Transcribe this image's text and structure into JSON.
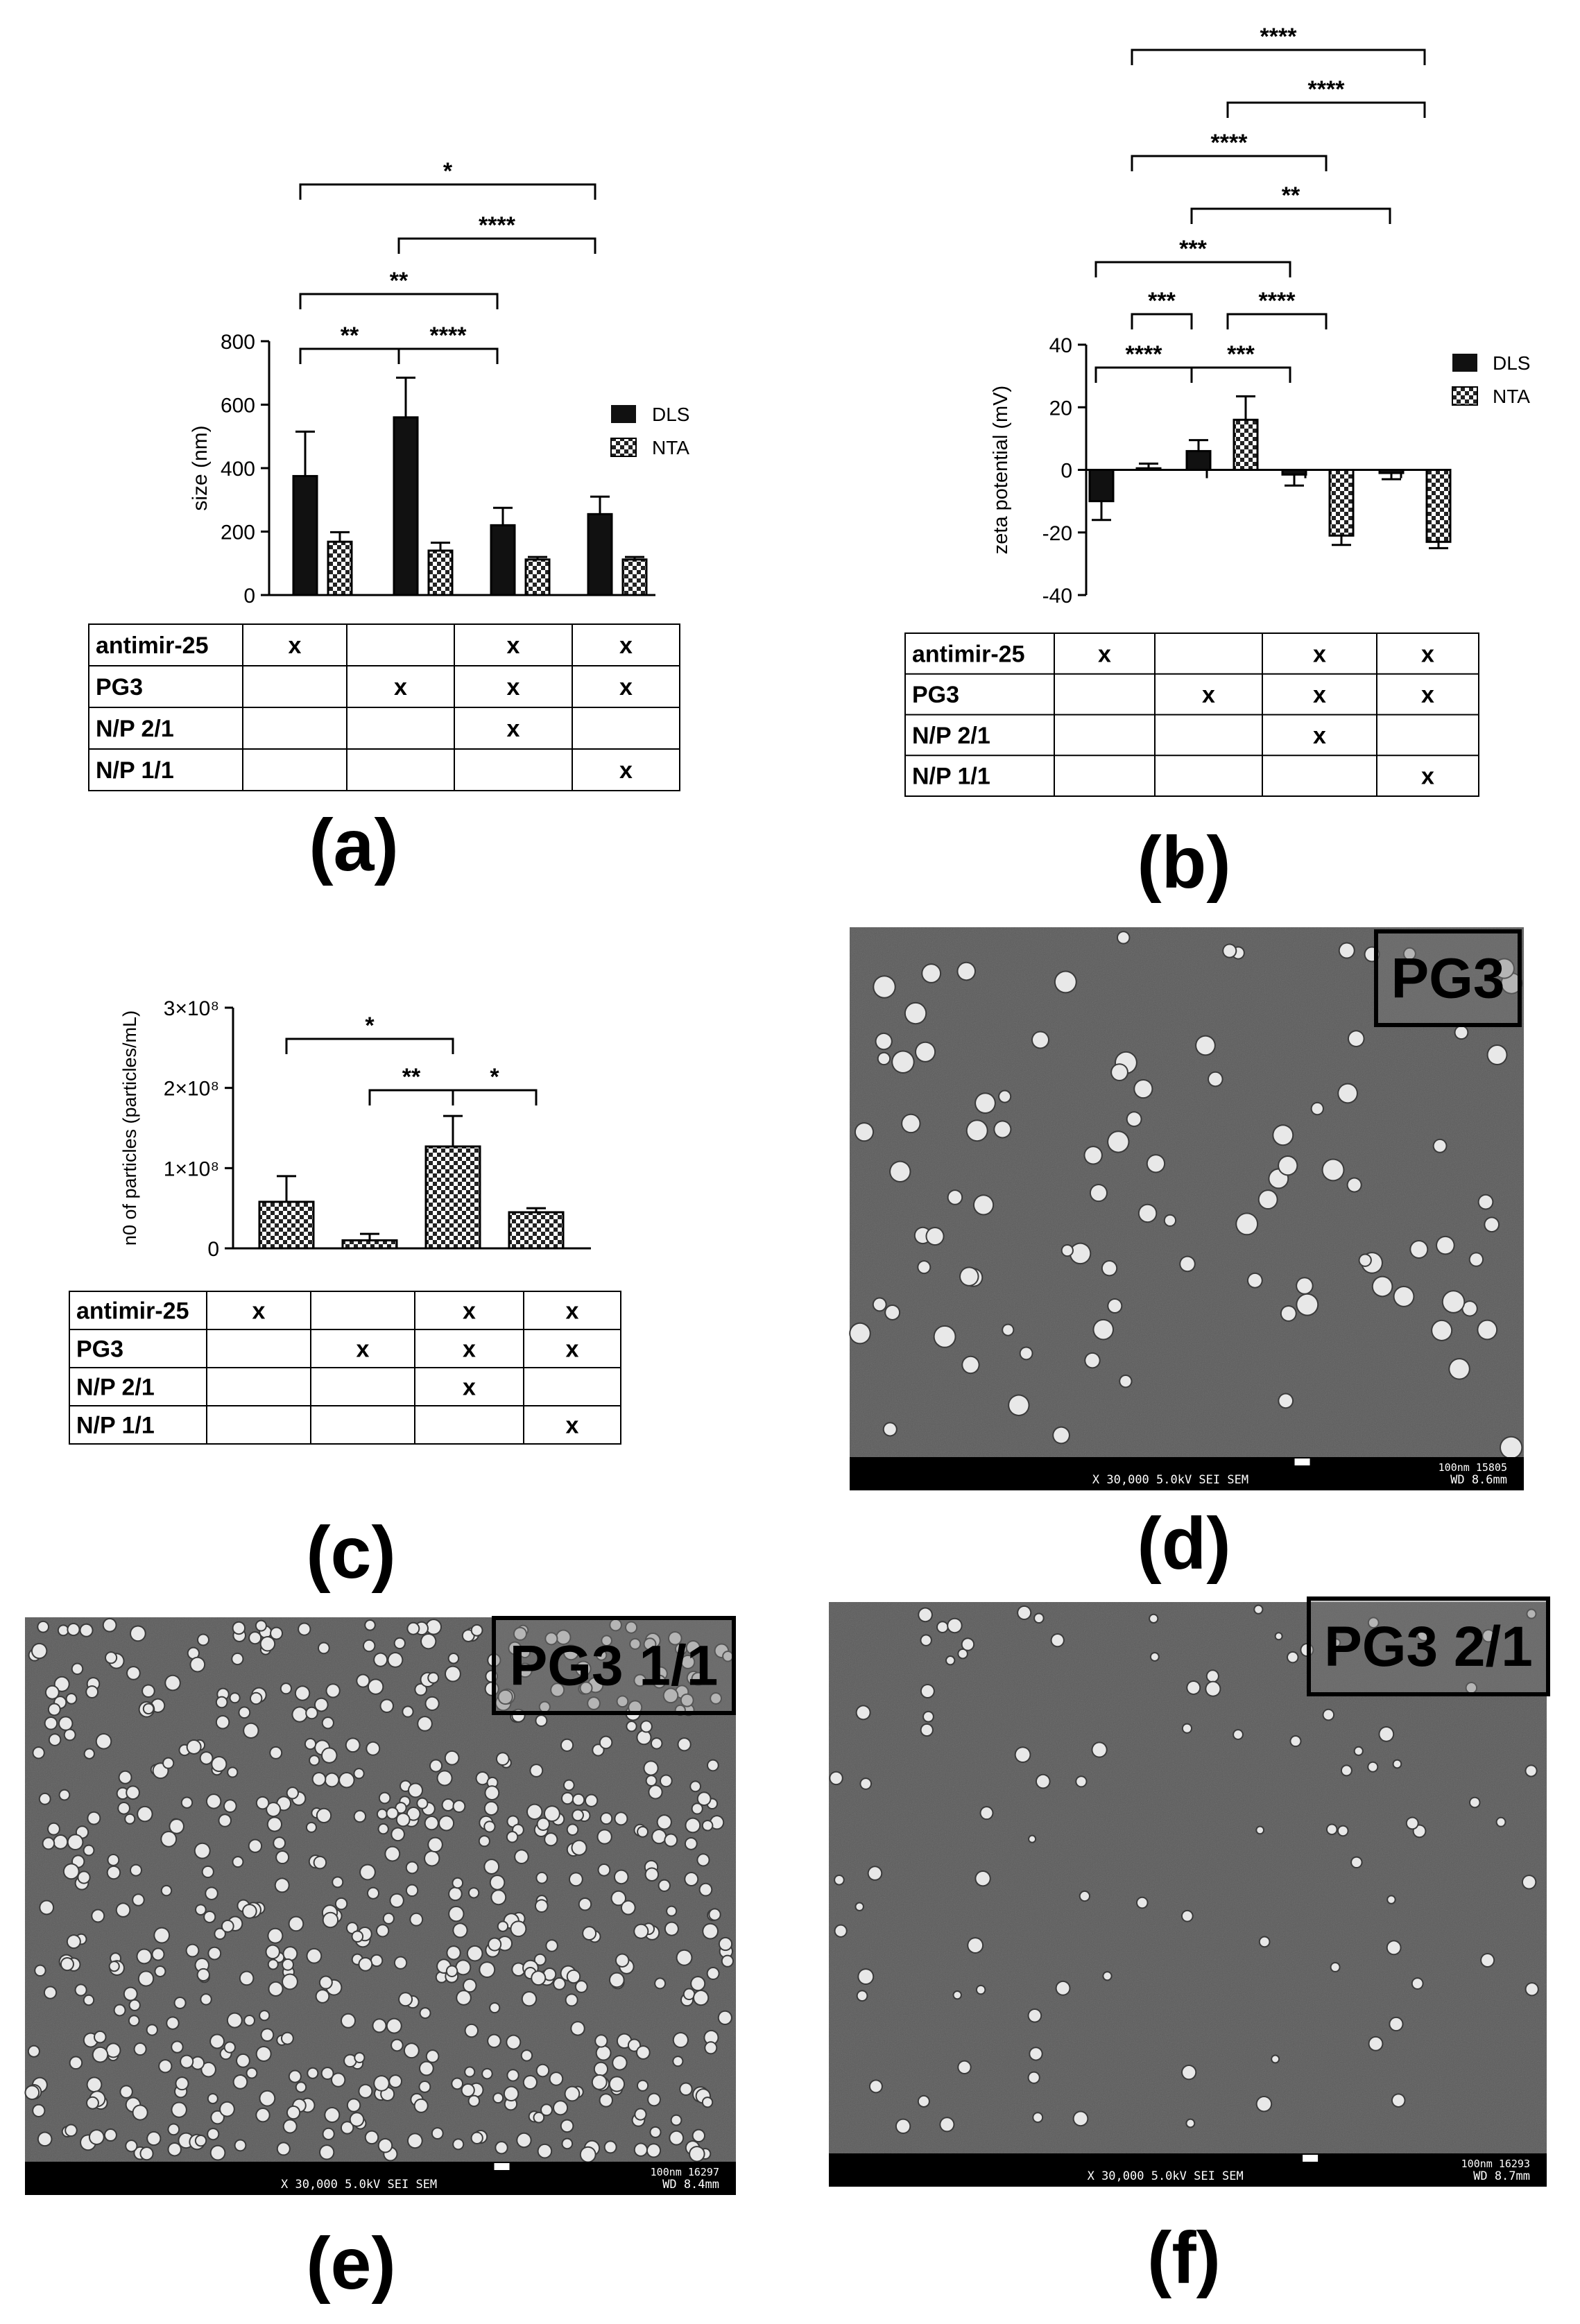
{
  "panel_labels": [
    "(a)",
    "(b)",
    "(c)",
    "(d)",
    "(e)",
    "(f)"
  ],
  "legend": {
    "dls": "DLS",
    "nta": "NTA"
  },
  "condition_table": {
    "rows": [
      "antimir-25",
      "PG3",
      "N/P 2/1",
      "N/P 1/1"
    ],
    "marks": [
      [
        "x",
        "",
        "x",
        "x"
      ],
      [
        "",
        "x",
        "x",
        "x"
      ],
      [
        "",
        "",
        "x",
        ""
      ],
      [
        "",
        "",
        "",
        "x"
      ]
    ]
  },
  "chart_data": [
    {
      "panel": "(a)",
      "type": "bar",
      "ylabel": "size (nm)",
      "ylim": [
        0,
        800
      ],
      "yticks": [
        "0",
        "200",
        "400",
        "600",
        "800"
      ],
      "legend_position": "right",
      "series": [
        {
          "name": "DLS",
          "values": [
            375,
            560,
            220,
            255
          ],
          "errors": [
            140,
            125,
            55,
            55
          ]
        },
        {
          "name": "NTA",
          "values": [
            168,
            140,
            112,
            112
          ],
          "errors": [
            30,
            25,
            8,
            8
          ]
        }
      ],
      "significance": [
        {
          "from": 0,
          "to": 3,
          "label": "*"
        },
        {
          "from": 1,
          "to": 3,
          "label": "****"
        },
        {
          "from": 0,
          "to": 2,
          "label": "**"
        },
        {
          "from": 0,
          "to": 1,
          "label": "**"
        },
        {
          "from": 1,
          "to": 2,
          "label": "****"
        }
      ]
    },
    {
      "panel": "(b)",
      "type": "bar",
      "ylabel": "zeta potential (mV)",
      "ylim": [
        -40,
        40
      ],
      "yticks": [
        "-40",
        "-20",
        "0",
        "20",
        "40"
      ],
      "legend_position": "right",
      "series": [
        {
          "name": "DLS",
          "values": [
            -10,
            6,
            -1.5,
            -1
          ],
          "errors": [
            6,
            3.5,
            3.5,
            2
          ]
        },
        {
          "name": "NTA",
          "values": [
            0.5,
            16,
            -21,
            -23
          ],
          "errors": [
            1.5,
            7.5,
            3,
            2
          ]
        }
      ],
      "significance": [
        {
          "from": 1,
          "to": 7,
          "label": "****"
        },
        {
          "from": 3,
          "to": 7,
          "label": "****"
        },
        {
          "from": 1,
          "to": 5,
          "label": "****"
        },
        {
          "from": 2,
          "to": 6,
          "label": "**"
        },
        {
          "from": 0,
          "to": 4,
          "label": "***"
        },
        {
          "from": 1,
          "to": 2,
          "label": "***"
        },
        {
          "from": 3,
          "to": 5,
          "label": "****"
        },
        {
          "from": 0,
          "to": 2,
          "label": "****"
        },
        {
          "from": 2,
          "to": 4,
          "label": "***"
        }
      ]
    },
    {
      "panel": "(c)",
      "type": "bar",
      "ylabel": "n0 of particles (particles/mL)",
      "ylim": [
        0,
        300000000.0
      ],
      "yticks": [
        "0",
        "1×10⁸",
        "2×10⁸",
        "3×10⁸"
      ],
      "series": [
        {
          "name": "NTA",
          "values": [
            58000000.0,
            10000000.0,
            127000000.0,
            45000000.0
          ],
          "errors": [
            32000000.0,
            8000000.0,
            38000000.0,
            5000000.0
          ]
        }
      ],
      "significance": [
        {
          "from": 0,
          "to": 2,
          "label": "*"
        },
        {
          "from": 1,
          "to": 2,
          "label": "**"
        },
        {
          "from": 2,
          "to": 3,
          "label": "*"
        }
      ]
    }
  ],
  "sem_images": [
    {
      "panel": "(d)",
      "label": "PG3",
      "footer_left": "X 30,000    5.0kV  SEI      SEM",
      "footer_scale": "100nm 15805",
      "footer_wd": "WD 8.6mm"
    },
    {
      "panel": "(e)",
      "label": "PG3 1/1",
      "footer_left": "X 30,000    5.0kV  SEI      SEM",
      "footer_scale": "100nm 16297",
      "footer_wd": "WD 8.4mm"
    },
    {
      "panel": "(f)",
      "label": "PG3 2/1",
      "footer_left": "X 30,000    5.0kV  SEI      SEM",
      "footer_scale": "100nm 16293",
      "footer_wd": "WD 8.7mm"
    }
  ]
}
